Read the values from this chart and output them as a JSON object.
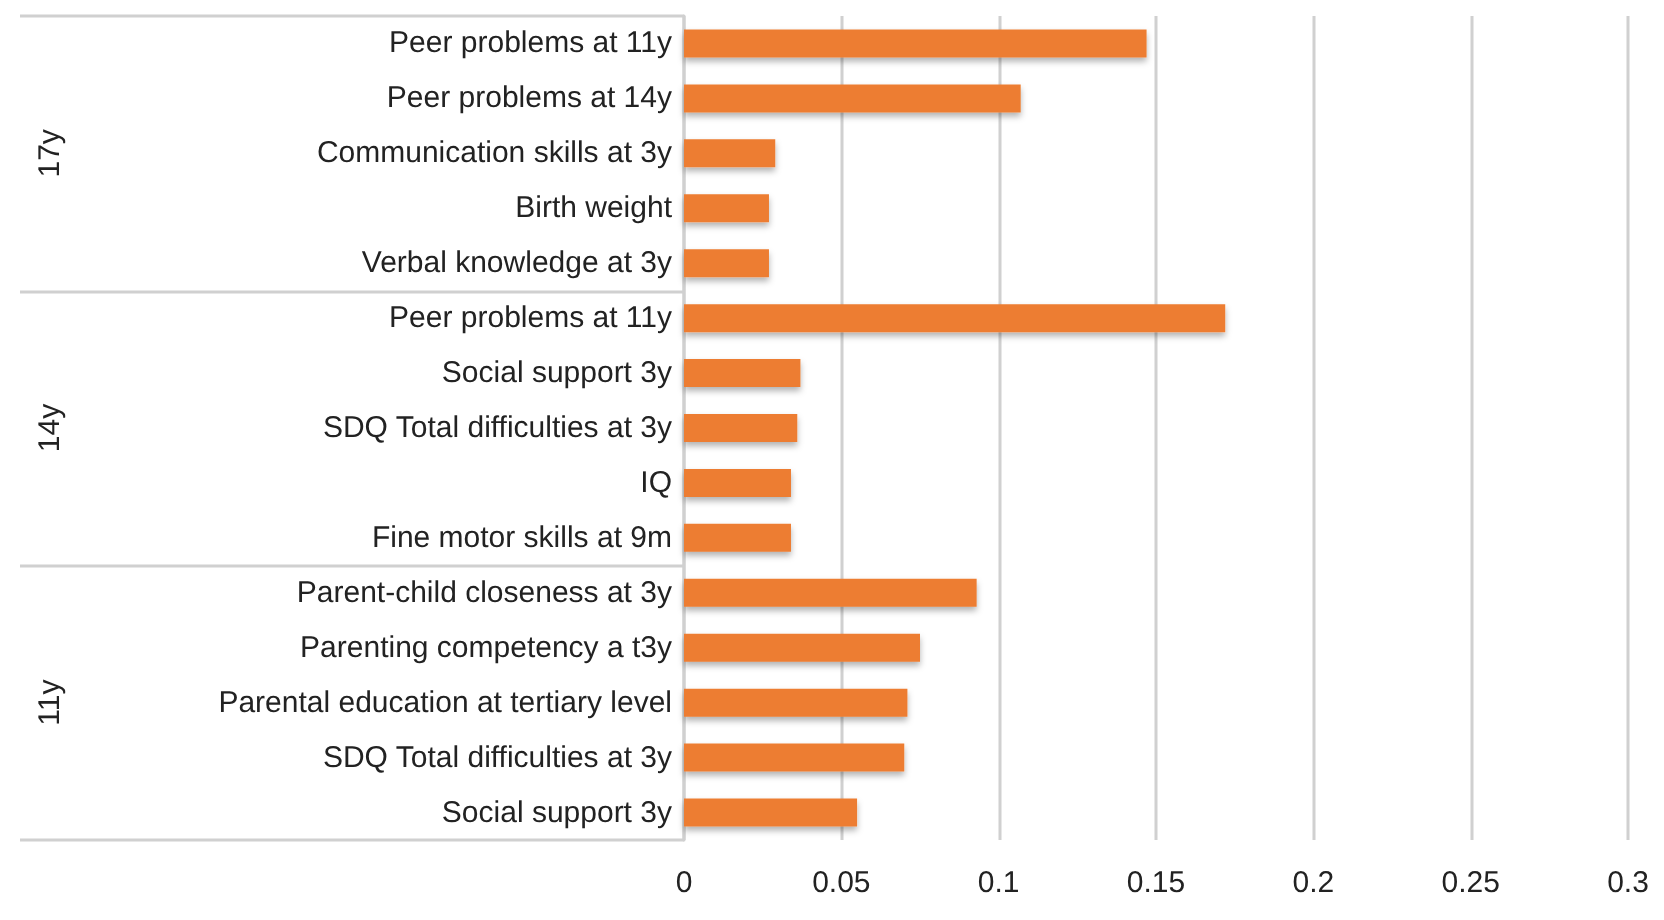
{
  "chart_data": {
    "type": "bar",
    "orientation": "horizontal",
    "categories": [
      "Peer problems at 11y",
      "Peer problems at 14y",
      "Communication skills at 3y",
      "Birth weight",
      "Verbal knowledge at 3y",
      "Peer problems at 11y",
      "Social support 3y",
      "SDQ Total difficulties at 3y",
      "IQ",
      "Fine motor skills at 9m",
      "Parent-child closeness at 3y",
      "Parenting competency a t3y",
      "Parental education at tertiary level",
      "SDQ Total difficulties at 3y",
      "Social support 3y"
    ],
    "values": [
      0.147,
      0.107,
      0.029,
      0.027,
      0.027,
      0.172,
      0.037,
      0.036,
      0.034,
      0.034,
      0.093,
      0.075,
      0.071,
      0.07,
      0.055
    ],
    "color": "#ed7d31",
    "xlim": [
      0,
      0.3
    ],
    "xticks": [
      0,
      0.05,
      0.1,
      0.15,
      0.2,
      0.25,
      0.3
    ],
    "annotations": [
      "17y",
      "14y",
      "11y"
    ],
    "grid": "x"
  }
}
